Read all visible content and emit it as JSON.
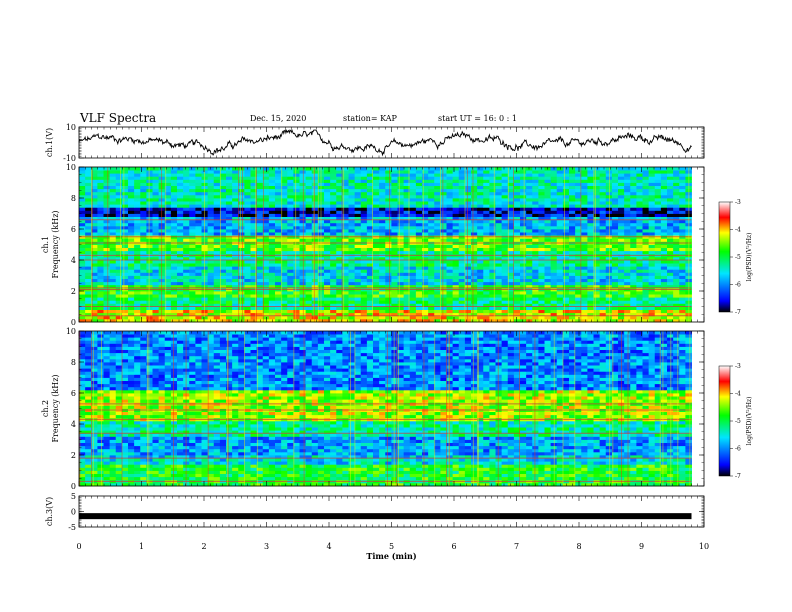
{
  "header": {
    "title": "VLF Spectra",
    "date": "Dec. 15, 2020",
    "station": "station= KAP",
    "start": "start  UT =   16: 0  : 1"
  },
  "chart_data": [
    {
      "type": "line",
      "ylabel": "ch.1(V)",
      "ylim": [
        -10,
        10
      ],
      "yticks": [
        "10",
        "-10"
      ],
      "xlim": [
        0,
        10
      ],
      "x_end": 9.8,
      "signal": "noisy waveform, roughly -8 to 8 V"
    },
    {
      "type": "heatmap",
      "ylabel_top": "ch.1",
      "ylabel": "Frequency  (kHz)",
      "ylim": [
        0,
        10
      ],
      "yticks": [
        "0",
        "2",
        "4",
        "6",
        "8",
        "10"
      ],
      "xlim": [
        0,
        10
      ],
      "colorbar": {
        "label": "log(PSD)(V²/Hz)",
        "range": [
          -7,
          -3
        ],
        "ticks": [
          "-3",
          "-4",
          "-5",
          "-6",
          "-7"
        ]
      },
      "bands": [
        {
          "f": [
            0.0,
            0.8
          ],
          "value": -4.2
        },
        {
          "f": [
            0.8,
            1.6
          ],
          "value": -5.2
        },
        {
          "f": [
            1.6,
            2.4
          ],
          "value": -4.8
        },
        {
          "f": [
            2.4,
            3.6
          ],
          "value": -5.6
        },
        {
          "f": [
            3.6,
            4.6
          ],
          "value": -5.2
        },
        {
          "f": [
            4.6,
            5.6
          ],
          "value": -4.6
        },
        {
          "f": [
            5.6,
            6.8
          ],
          "value": -5.8
        },
        {
          "f": [
            6.8,
            7.4
          ],
          "value": -6.6
        },
        {
          "f": [
            7.4,
            10.0
          ],
          "value": -5.4
        }
      ],
      "lines_khz": [
        0.4,
        1.0,
        2.1,
        2.2,
        4.0,
        4.3,
        5.1,
        5.5,
        6.6
      ]
    },
    {
      "type": "heatmap",
      "ylabel_top": "ch.2",
      "ylabel": "Frequency  (kHz)",
      "ylim": [
        0,
        10
      ],
      "yticks": [
        "0",
        "2",
        "4",
        "6",
        "8",
        "10"
      ],
      "xlim": [
        0,
        10
      ],
      "colorbar": {
        "label": "log(PSD)(V²/Hz)",
        "range": [
          -7,
          -3
        ],
        "ticks": [
          "-3",
          "-4",
          "-5",
          "-6",
          "-7"
        ]
      },
      "bands": [
        {
          "f": [
            0.0,
            1.4
          ],
          "value": -4.9
        },
        {
          "f": [
            1.4,
            2.0
          ],
          "value": -5.6
        },
        {
          "f": [
            2.0,
            3.2
          ],
          "value": -5.9
        },
        {
          "f": [
            3.2,
            4.2
          ],
          "value": -5.3
        },
        {
          "f": [
            4.2,
            6.2
          ],
          "value": -4.4
        },
        {
          "f": [
            6.2,
            10.0
          ],
          "value": -6.0
        }
      ],
      "lines_khz": [
        0.3,
        1.8,
        3.4,
        4.3,
        4.9,
        5.3
      ]
    },
    {
      "type": "line",
      "ylabel": "ch.3(V)",
      "xlabel": "Time  (min)",
      "ylim": [
        -5,
        5
      ],
      "yticks": [
        "5",
        "0",
        "-5"
      ],
      "xlim": [
        0,
        10
      ],
      "xticks": [
        "0",
        "1",
        "2",
        "3",
        "4",
        "5",
        "6",
        "7",
        "8",
        "9",
        "10"
      ],
      "level_v": -1.5,
      "x_end": 9.8
    }
  ]
}
